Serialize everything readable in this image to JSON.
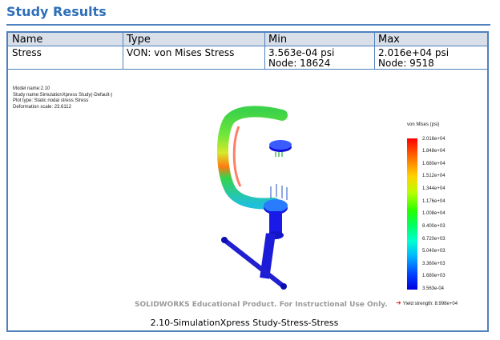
{
  "title": "Study Results",
  "table": {
    "headers": [
      "Name",
      "Type",
      "Min",
      "Max"
    ],
    "row": {
      "name": "Stress",
      "type": "VON: von Mises Stress",
      "min_value": "3.563e-04 psi",
      "min_node": "Node: 18624",
      "max_value": "2.016e+04 psi",
      "max_node": "Node: 9518"
    }
  },
  "plot_info": {
    "model_name": "Model name:2.10",
    "study_name": "Study name:SimulationXpress Study(-Default-)",
    "plot_type": "Plot type: Static nodal stress Stress",
    "deformation_scale": "Deformation scale: 23.6112"
  },
  "legend": {
    "title": "von Mises (psi)",
    "labels": [
      "2.016e+04",
      "1.848e+04",
      "1.680e+04",
      "1.512e+04",
      "1.344e+04",
      "1.176e+04",
      "1.008e+04",
      "8.400e+03",
      "6.720e+03",
      "5.040e+03",
      "3.360e+03",
      "1.680e+03",
      "3.563e-04"
    ],
    "yield_strength": "Yield strength: 8.998e+04"
  },
  "watermark": "SOLIDWORKS Educational Product. For Instructional Use Only.",
  "caption": "2.10-SimulationXpress Study-Stress-Stress",
  "colors": {
    "accent": "#4f81bd",
    "title": "#2e6fb8",
    "header_bg": "#d9dfe9"
  }
}
